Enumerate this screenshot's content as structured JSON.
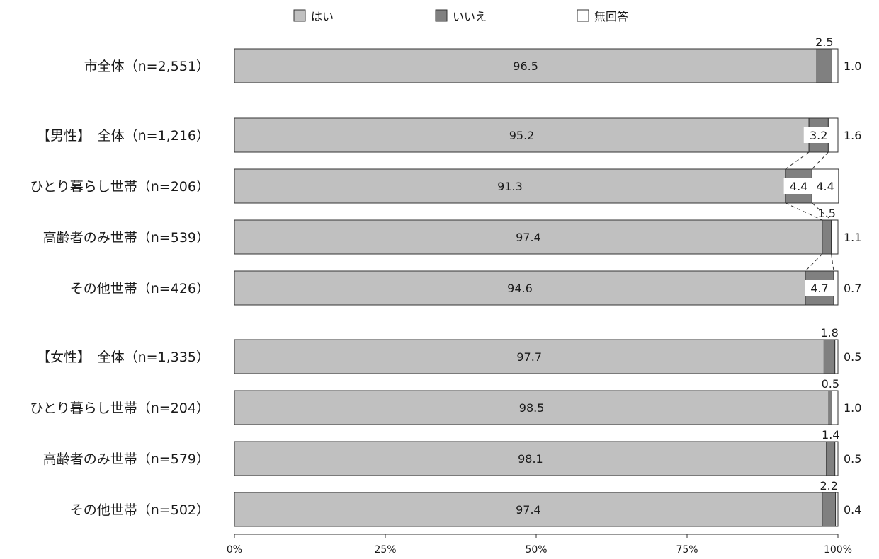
{
  "chart_data": {
    "type": "bar",
    "orientation": "horizontal",
    "stacked": "100%",
    "legend": {
      "placement": "top",
      "items": [
        "はい",
        "いいえ",
        "無回答"
      ]
    },
    "colors": {
      "yes": "#c0c0c0",
      "no": "#808080",
      "na": "#ffffff",
      "border": "#333333"
    },
    "xlim": [
      0,
      100
    ],
    "xticks": [
      "0%",
      "25%",
      "50%",
      "75%",
      "100%"
    ],
    "rows": [
      {
        "label": "市全体（n=2,551）",
        "values": [
          96.5,
          2.5,
          1.0
        ],
        "labels": [
          "96.5",
          "2.5",
          "1.0"
        ]
      },
      {
        "label": "【男性】　全体（n=1,216）",
        "values": [
          95.2,
          3.2,
          1.6
        ],
        "labels": [
          "95.2",
          "3.2",
          "1.6"
        ]
      },
      {
        "label": "ひとり暮らし世帯（n=206）",
        "values": [
          91.3,
          4.4,
          4.4
        ],
        "labels": [
          "91.3",
          "4.4",
          "4.4"
        ]
      },
      {
        "label": "高齢者のみ世帯（n=539）",
        "values": [
          97.4,
          1.5,
          1.1
        ],
        "labels": [
          "97.4",
          "1.5",
          "1.1"
        ]
      },
      {
        "label": "その他世帯（n=426）",
        "values": [
          94.6,
          4.7,
          0.7
        ],
        "labels": [
          "94.6",
          "4.7",
          "0.7"
        ]
      },
      {
        "label": "【女性】　全体（n=1,335）",
        "values": [
          97.7,
          1.8,
          0.5
        ],
        "labels": [
          "97.7",
          "1.8",
          "0.5"
        ]
      },
      {
        "label": "ひとり暮らし世帯（n=204）",
        "values": [
          98.5,
          0.5,
          1.0
        ],
        "labels": [
          "98.5",
          "0.5",
          "1.0"
        ]
      },
      {
        "label": "高齢者のみ世帯（n=579）",
        "values": [
          98.1,
          1.4,
          0.5
        ],
        "labels": [
          "98.1",
          "1.4",
          "0.5"
        ]
      },
      {
        "label": "その他世帯（n=502）",
        "values": [
          97.4,
          2.2,
          0.4
        ],
        "labels": [
          "97.4",
          "2.2",
          "0.4"
        ]
      }
    ]
  }
}
